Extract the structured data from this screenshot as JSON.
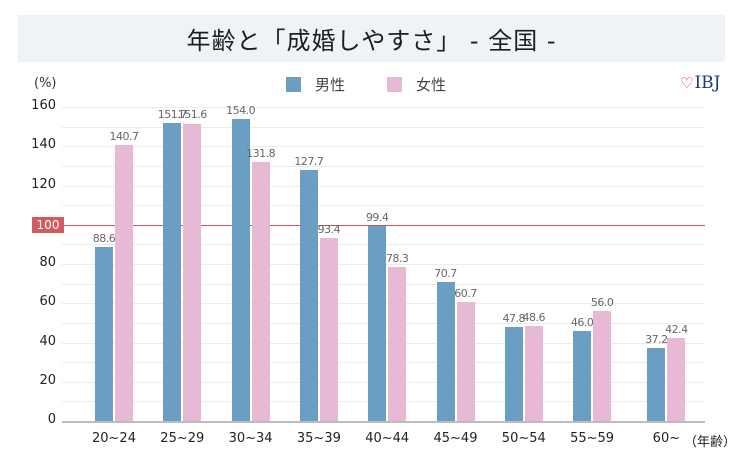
{
  "header": {
    "title": "年齢と「成婚しやすさ」 - 全国 -"
  },
  "logo": {
    "text": "IBJ",
    "icon": "heart-icon"
  },
  "colors": {
    "male": "#6a9ec2",
    "female": "#e8b9d5",
    "reference_line": "#c8565c",
    "banner_bg": "#eef3f7"
  },
  "chart_data": {
    "type": "bar",
    "title": "年齢と「成婚しやすさ」 - 全国 -",
    "xlabel": "（年齢）",
    "ylabel": "(%)",
    "ylim": [
      0,
      160
    ],
    "yticks": [
      0,
      20,
      40,
      60,
      80,
      100,
      120,
      140,
      160
    ],
    "grid": true,
    "grid_step": 10,
    "reference_line": {
      "value": 100,
      "label": "100"
    },
    "legend_position": "top",
    "categories": [
      "20~24",
      "25~29",
      "30~34",
      "35~39",
      "40~44",
      "45~49",
      "50~54",
      "55~59",
      "60~"
    ],
    "series": [
      {
        "name": "男性",
        "values": [
          88.6,
          151.7,
          154.0,
          127.7,
          99.4,
          70.7,
          47.8,
          46.0,
          37.2
        ],
        "labels": [
          "88.6",
          "151.7",
          "154.0",
          "127.7",
          "99.4",
          "70.7",
          "47.8",
          "46.0",
          "37.2"
        ]
      },
      {
        "name": "女性",
        "values": [
          140.7,
          151.6,
          131.8,
          93.4,
          78.3,
          60.7,
          48.6,
          56.0,
          42.4
        ],
        "labels": [
          "140.7",
          "151.6",
          "131.8",
          "93.4",
          "78.3",
          "60.7",
          "48.6",
          "56.0",
          "42.4"
        ]
      }
    ]
  }
}
